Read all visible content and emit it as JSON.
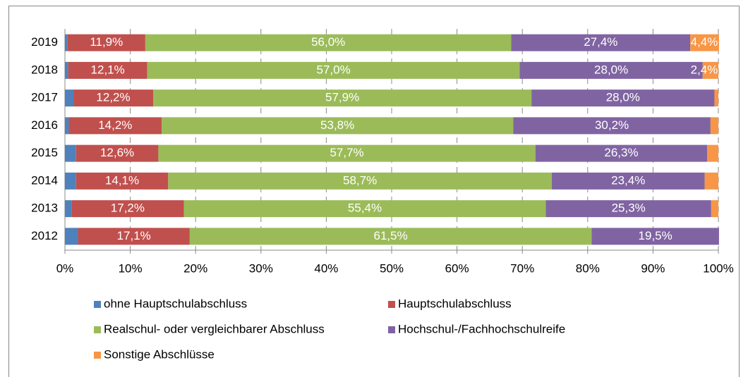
{
  "chart_data": {
    "type": "stacked_barh",
    "categories": [
      "2019",
      "2018",
      "2017",
      "2016",
      "2015",
      "2014",
      "2013",
      "2012"
    ],
    "series": [
      {
        "name": "ohne Hauptschulabschluss",
        "color": "#4f81bd",
        "values": [
          0.4,
          0.5,
          1.3,
          0.6,
          1.7,
          1.7,
          1.0,
          2.0
        ]
      },
      {
        "name": "Hauptschulabschluss",
        "color": "#c0504d",
        "values": [
          11.9,
          12.1,
          12.2,
          14.2,
          12.6,
          14.1,
          17.2,
          17.1
        ],
        "value_labels": [
          "11,9%",
          "12,1%",
          "12,2%",
          "14,2%",
          "12,6%",
          "14,1%",
          "17,2%",
          "17,1%"
        ]
      },
      {
        "name": "Realschul- oder vergleichbarer Abschluss",
        "color": "#9bbb59",
        "values": [
          56.0,
          57.0,
          57.9,
          53.8,
          57.7,
          58.7,
          55.4,
          61.5
        ],
        "value_labels": [
          "56,0%",
          "57,0%",
          "57,9%",
          "53,8%",
          "57,7%",
          "58,7%",
          "55,4%",
          "61,5%"
        ]
      },
      {
        "name": "Hochschul-/Fachhochschulreife",
        "color": "#8064a2",
        "values": [
          27.4,
          28.0,
          28.0,
          30.2,
          26.3,
          23.4,
          25.3,
          19.5
        ],
        "value_labels": [
          "27,4%",
          "28,0%",
          "28,0%",
          "30,2%",
          "26,3%",
          "23,4%",
          "25,3%",
          "19,5%"
        ]
      },
      {
        "name": "Sonstige Abschlüsse",
        "color": "#f79646",
        "values": [
          4.4,
          2.4,
          0.6,
          1.2,
          1.7,
          2.1,
          1.1,
          0
        ],
        "value_labels": [
          "4,4%",
          "2,4%",
          null,
          null,
          null,
          null,
          null,
          null
        ]
      }
    ],
    "xlim": [
      0,
      100
    ],
    "xticks": [
      {
        "value": 0,
        "label": "0%"
      },
      {
        "value": 10,
        "label": "10%"
      },
      {
        "value": 20,
        "label": "20%"
      },
      {
        "value": 30,
        "label": "30%"
      },
      {
        "value": 40,
        "label": "40%"
      },
      {
        "value": 50,
        "label": "50%"
      },
      {
        "value": 60,
        "label": "60%"
      },
      {
        "value": 70,
        "label": "70%"
      },
      {
        "value": 80,
        "label": "80%"
      },
      {
        "value": 90,
        "label": "90%"
      },
      {
        "value": 100,
        "label": "100%"
      }
    ],
    "grid": true
  }
}
